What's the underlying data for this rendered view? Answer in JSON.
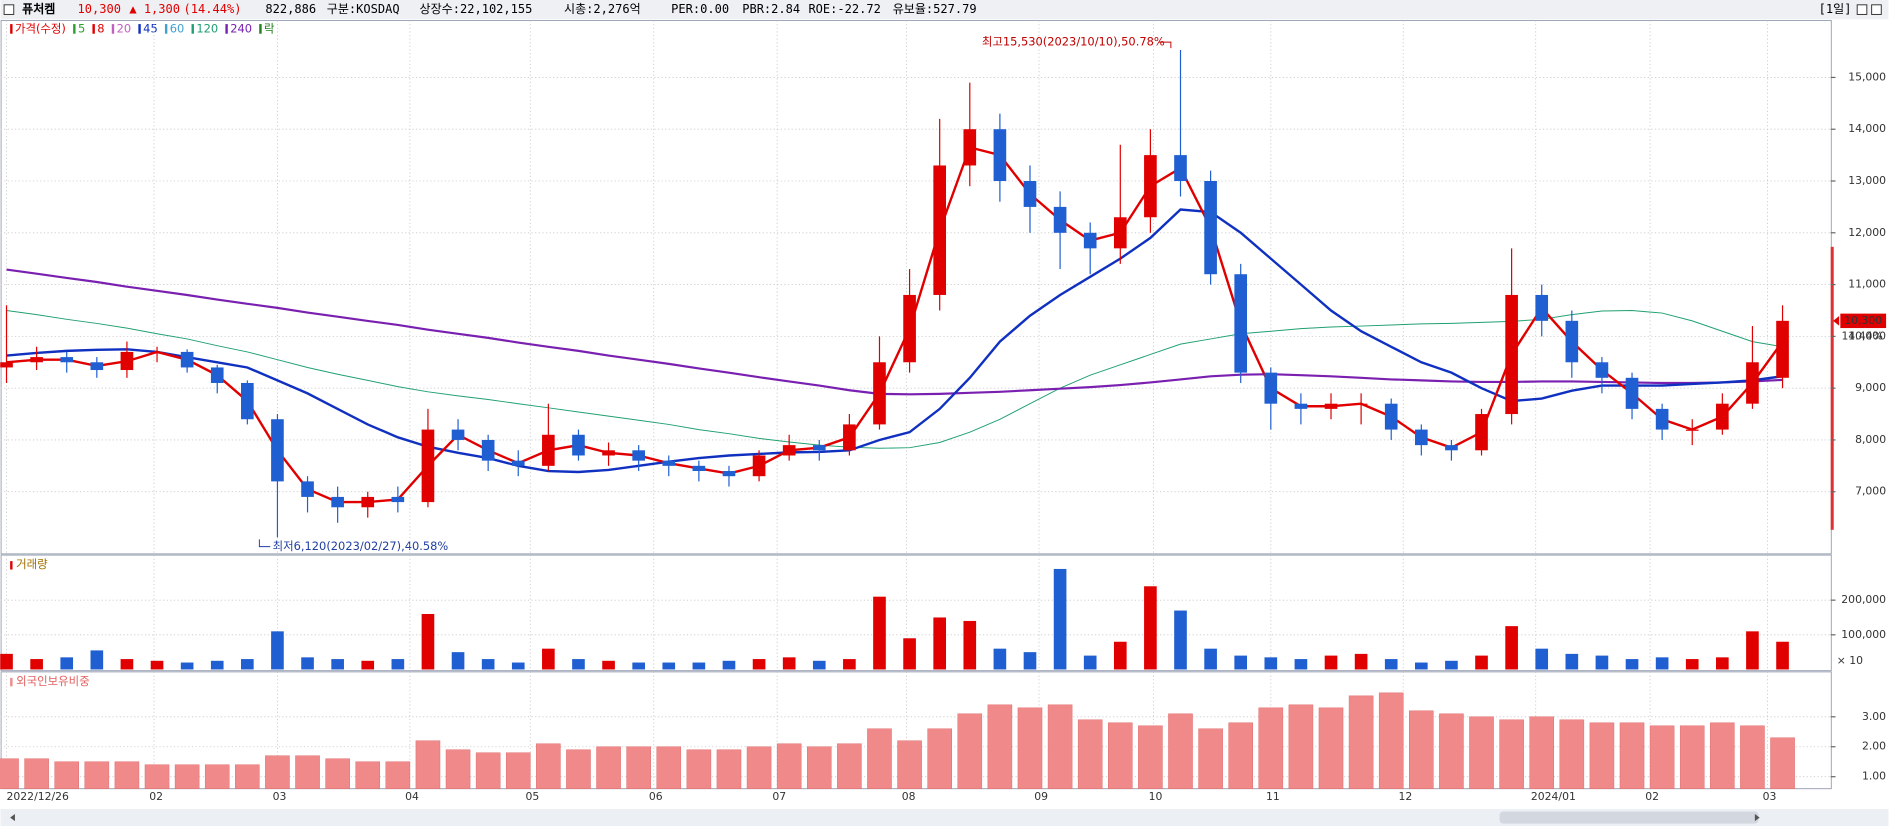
{
  "chart_data": {
    "type": "candlestick",
    "header": {
      "name": "퓨처켐",
      "price": "10,300",
      "change": "▲ 1,300",
      "change_pct": "(14.44%)",
      "volume": "822,886",
      "market": "구분:KOSDAQ",
      "shares": "상장수:22,102,155",
      "cap": "시총:2,276억",
      "per": "PER:0.00",
      "pbr": "PBR:2.84",
      "roe": "ROE:-22.72",
      "reserve": "유보율:527.79",
      "period": "[1일]"
    },
    "legend": [
      {
        "name": "가격(수정)",
        "color": "#e00000"
      },
      {
        "name": "5",
        "color": "#2ca02c"
      },
      {
        "name": "8",
        "color": "#e00000"
      },
      {
        "name": "20",
        "color": "#c060c0"
      },
      {
        "name": "45",
        "color": "#1030c0"
      },
      {
        "name": "60",
        "color": "#40a0d0"
      },
      {
        "name": "120",
        "color": "#20a070"
      },
      {
        "name": "240",
        "color": "#7a20b0"
      },
      {
        "name": "락",
        "color": "#208020"
      }
    ],
    "xlim": [
      -0.2,
      60.6
    ],
    "xticks": [
      {
        "value": 0,
        "label": "2022/12/26"
      },
      {
        "value": 4.9,
        "label": "02"
      },
      {
        "value": 9,
        "label": "03"
      },
      {
        "value": 13.4,
        "label": "04"
      },
      {
        "value": 17.4,
        "label": "05"
      },
      {
        "value": 21.5,
        "label": "06"
      },
      {
        "value": 25.6,
        "label": "07"
      },
      {
        "value": 29.9,
        "label": "08"
      },
      {
        "value": 34.3,
        "label": "09"
      },
      {
        "value": 38.1,
        "label": "10"
      },
      {
        "value": 42,
        "label": "11"
      },
      {
        "value": 46.4,
        "label": "12"
      },
      {
        "value": 50.8,
        "label": "2024/01"
      },
      {
        "value": 54.6,
        "label": "02"
      },
      {
        "value": 58.5,
        "label": "03"
      }
    ],
    "price": {
      "ylim": [
        5800,
        16100
      ],
      "yticks": [
        {
          "value": 7000,
          "label": "7,000"
        },
        {
          "value": 8000,
          "label": "8,000"
        },
        {
          "value": 9000,
          "label": "9,000"
        },
        {
          "value": 10000,
          "label": "10,000"
        },
        {
          "value": 11000,
          "label": "11,000"
        },
        {
          "value": 12000,
          "label": "12,000"
        },
        {
          "value": 13000,
          "label": "13,000"
        },
        {
          "value": 14000,
          "label": "14,000"
        },
        {
          "value": 15000,
          "label": "15,000"
        }
      ],
      "up_color": "#e00000",
      "down_color": "#1f5fd1",
      "open": [
        9400,
        9500,
        9600,
        9500,
        9350,
        9700,
        9700,
        9400,
        9100,
        8400,
        7200,
        6900,
        6700,
        6900,
        6800,
        8200,
        8000,
        7600,
        7500,
        8100,
        7700,
        7800,
        7600,
        7500,
        7400,
        7300,
        7700,
        7900,
        7800,
        8300,
        9500,
        10800,
        13300,
        14000,
        13000,
        12500,
        12000,
        11700,
        12300,
        13500,
        13000,
        11200,
        9300,
        8700,
        8600,
        8700,
        8700,
        8200,
        7900,
        7800,
        8500,
        10800,
        10300,
        9500,
        9200,
        8600,
        8200,
        8200,
        8700,
        9200
      ],
      "high": [
        10600,
        9800,
        9700,
        9600,
        9900,
        9800,
        9750,
        9450,
        9150,
        8500,
        7300,
        7100,
        7000,
        7100,
        8600,
        8400,
        8100,
        7800,
        8700,
        8200,
        7950,
        7900,
        7700,
        7600,
        7500,
        7800,
        8100,
        8000,
        8500,
        10000,
        11300,
        14200,
        14900,
        14300,
        13300,
        12800,
        12200,
        13700,
        14000,
        15530,
        13200,
        11400,
        9400,
        8900,
        8900,
        8900,
        8800,
        8300,
        8000,
        8600,
        11700,
        11000,
        10500,
        9600,
        9300,
        8700,
        8400,
        8900,
        10200,
        10600
      ],
      "low": [
        9100,
        9350,
        9300,
        9200,
        9200,
        9500,
        9300,
        8900,
        8300,
        6120,
        6600,
        6400,
        6500,
        6600,
        6700,
        7800,
        7400,
        7300,
        7400,
        7600,
        7500,
        7400,
        7300,
        7200,
        7100,
        7200,
        7600,
        7600,
        7700,
        8200,
        9300,
        10500,
        12900,
        12600,
        12000,
        11300,
        11200,
        11400,
        12000,
        12700,
        11000,
        9100,
        8200,
        8300,
        8400,
        8300,
        8000,
        7700,
        7600,
        7700,
        8300,
        10000,
        9200,
        8900,
        8400,
        8000,
        7900,
        8100,
        8600,
        9000
      ],
      "close": [
        9500,
        9600,
        9500,
        9350,
        9700,
        9700,
        9400,
        9100,
        8400,
        7200,
        6900,
        6700,
        6900,
        6800,
        8200,
        8000,
        7600,
        7500,
        8100,
        7700,
        7800,
        7600,
        7500,
        7400,
        7300,
        7700,
        7900,
        7800,
        8300,
        9500,
        10800,
        13300,
        14000,
        13000,
        12500,
        12000,
        11700,
        12300,
        13500,
        13000,
        11200,
        9300,
        8700,
        8600,
        8700,
        8700,
        8200,
        7900,
        7800,
        8500,
        10800,
        10300,
        9500,
        9200,
        8600,
        8200,
        8200,
        8700,
        9500,
        10300
      ],
      "ma": [
        {
          "color": "#20a070",
          "width": 0.8,
          "values": [
            10500,
            10420,
            10330,
            10250,
            10160,
            10050,
            9950,
            9820,
            9700,
            9550,
            9400,
            9270,
            9150,
            9030,
            8930,
            8850,
            8780,
            8700,
            8620,
            8540,
            8460,
            8380,
            8300,
            8200,
            8120,
            8030,
            7960,
            7900,
            7860,
            7840,
            7850,
            7950,
            8150,
            8400,
            8700,
            9000,
            9250,
            9450,
            9650,
            9850,
            9950,
            10050,
            10100,
            10150,
            10180,
            10200,
            10220,
            10240,
            10250,
            10270,
            10290,
            10330,
            10420,
            10490,
            10500,
            10450,
            10300,
            10100,
            9900,
            9800
          ]
        },
        {
          "color": "#7a20b0",
          "width": 1.8,
          "values": [
            11290,
            11210,
            11130,
            11050,
            10960,
            10880,
            10800,
            10710,
            10630,
            10550,
            10460,
            10380,
            10300,
            10220,
            10130,
            10050,
            9970,
            9880,
            9800,
            9720,
            9630,
            9550,
            9470,
            9380,
            9300,
            9210,
            9130,
            9050,
            8960,
            8890,
            8880,
            8890,
            8910,
            8930,
            8960,
            8990,
            9020,
            9060,
            9110,
            9170,
            9230,
            9260,
            9270,
            9250,
            9230,
            9200,
            9170,
            9150,
            9130,
            9120,
            9120,
            9130,
            9130,
            9120,
            9110,
            9100,
            9100,
            9110,
            9130,
            9160
          ]
        },
        {
          "color": "#1030c0",
          "width": 2,
          "values": [
            9630,
            9680,
            9720,
            9740,
            9750,
            9700,
            9600,
            9500,
            9400,
            9150,
            8900,
            8600,
            8300,
            8050,
            7870,
            7750,
            7650,
            7500,
            7400,
            7380,
            7420,
            7500,
            7580,
            7650,
            7700,
            7730,
            7760,
            7770,
            7800,
            8000,
            8150,
            8600,
            9200,
            9900,
            10400,
            10800,
            11150,
            11500,
            11900,
            12450,
            12400,
            12000,
            11500,
            11000,
            10500,
            10100,
            9800,
            9500,
            9300,
            9000,
            8750,
            8800,
            8950,
            9050,
            9050,
            9050,
            9080,
            9110,
            9150,
            9230
          ]
        },
        {
          "color": "#e00000",
          "width": 2,
          "values": [
            9500,
            9550,
            9550,
            9430,
            9520,
            9700,
            9550,
            9250,
            8750,
            7800,
            7050,
            6800,
            6800,
            6850,
            7500,
            8100,
            7800,
            7550,
            7800,
            7900,
            7750,
            7700,
            7550,
            7450,
            7350,
            7500,
            7800,
            7850,
            8050,
            8900,
            10150,
            12050,
            13650,
            13500,
            12750,
            12250,
            11850,
            12000,
            12900,
            13250,
            12100,
            10250,
            9000,
            8650,
            8650,
            8700,
            8450,
            8050,
            7850,
            8150,
            9650,
            10550,
            9900,
            9350,
            8900,
            8400,
            8200,
            8450,
            9100,
            9900
          ]
        }
      ],
      "high_note": "최고15,530(2023/10/10),50.78%",
      "low_note": "최저6,120(2023/02/27),40.58%",
      "current": {
        "value": 10300,
        "label": "10,300",
        "change": "14.44%"
      }
    },
    "volume": {
      "title": "거래량",
      "unit": "× 10",
      "ylim": [
        0,
        330000
      ],
      "yticks": [
        {
          "value": 100000,
          "label": "100,000"
        },
        {
          "value": 200000,
          "label": "200,000"
        }
      ],
      "values": [
        45000,
        30000,
        35000,
        55000,
        30000,
        25000,
        20000,
        25000,
        30000,
        110000,
        35000,
        30000,
        25000,
        30000,
        160000,
        50000,
        30000,
        20000,
        60000,
        30000,
        25000,
        20000,
        20000,
        20000,
        25000,
        30000,
        35000,
        25000,
        30000,
        210000,
        90000,
        150000,
        140000,
        60000,
        50000,
        290000,
        40000,
        80000,
        240000,
        170000,
        60000,
        40000,
        35000,
        30000,
        40000,
        45000,
        30000,
        20000,
        25000,
        40000,
        125000,
        60000,
        45000,
        40000,
        30000,
        35000,
        30000,
        35000,
        110000,
        80000
      ]
    },
    "foreign": {
      "title": "외국인보유비중",
      "color": "#f08a8a",
      "ylim": [
        0.6,
        4.5
      ],
      "yticks": [
        {
          "value": 1,
          "label": "1.00"
        },
        {
          "value": 2,
          "label": "2.00"
        },
        {
          "value": 3,
          "label": "3.00"
        }
      ],
      "values": [
        1.6,
        1.6,
        1.5,
        1.5,
        1.5,
        1.4,
        1.4,
        1.4,
        1.4,
        1.7,
        1.7,
        1.6,
        1.5,
        1.5,
        2.2,
        1.9,
        1.8,
        1.8,
        2.1,
        1.9,
        2.0,
        2.0,
        2.0,
        1.9,
        1.9,
        2.0,
        2.1,
        2.0,
        2.1,
        2.6,
        2.2,
        2.6,
        3.1,
        3.4,
        3.3,
        3.4,
        2.9,
        2.8,
        2.7,
        3.1,
        2.6,
        2.8,
        3.3,
        3.4,
        3.3,
        3.7,
        3.8,
        3.2,
        3.1,
        3.0,
        2.9,
        3.0,
        2.9,
        2.8,
        2.8,
        2.7,
        2.7,
        2.8,
        2.7,
        2.3
      ]
    }
  }
}
